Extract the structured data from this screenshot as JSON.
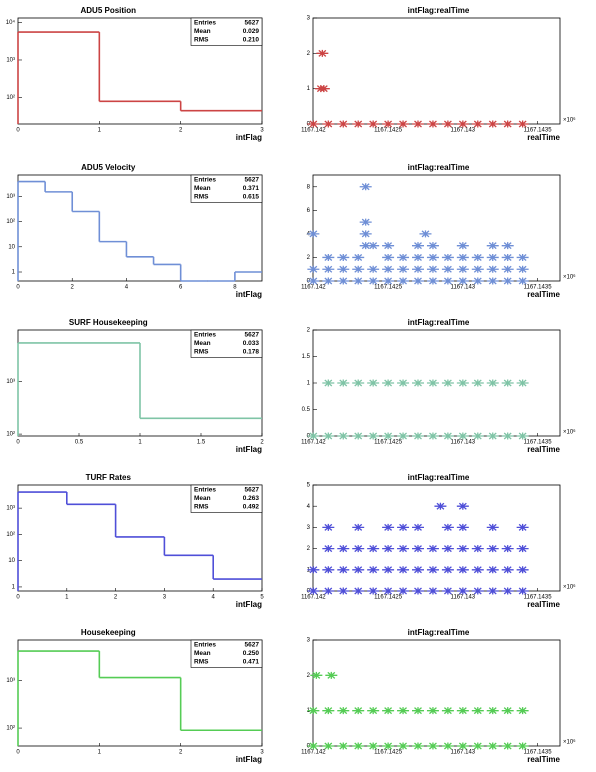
{
  "chart_data": [
    {
      "type": "histogram",
      "title": "ADU5 Position",
      "x_label": "intFlag",
      "color": "#cc4444",
      "log_y": true,
      "bins": [
        0,
        1,
        2,
        3
      ],
      "values": [
        5500,
        80,
        45
      ],
      "xlim": [
        0,
        3
      ],
      "xticks": [
        0,
        1,
        2,
        3
      ],
      "ylim": [
        20,
        13000
      ],
      "yticks": [
        {
          "value": 100,
          "label": "10²"
        },
        {
          "value": 1000,
          "label": "10³"
        },
        {
          "value": 10000,
          "label": "10⁴"
        }
      ],
      "stats": [
        [
          "Entries",
          "5627"
        ],
        [
          "Mean",
          "0.029"
        ],
        [
          "RMS",
          "0.210"
        ]
      ]
    },
    {
      "type": "scatter",
      "title": "intFlag:realTime",
      "x_label": "realTime",
      "x_exponent": "×10⁶",
      "color": "#cc4444",
      "xlim": [
        1167.1419975,
        1167.14365
      ],
      "xticks": [
        1167.142,
        1167.1425,
        1167.143,
        1167.1435
      ],
      "ylim": [
        0,
        3
      ],
      "yticks": [
        0,
        1,
        2,
        3
      ],
      "x": [
        1167.142,
        1167.1421,
        1167.1422,
        1167.1423,
        1167.1424,
        1167.1425,
        1167.1426,
        1167.1427,
        1167.1428,
        1167.1429,
        1167.143,
        1167.1431,
        1167.1432,
        1167.1433,
        1167.1434,
        1167.14205,
        1167.14207,
        1167.14206
      ],
      "y": [
        0,
        0,
        0,
        0,
        0,
        0,
        0,
        0,
        0,
        0,
        0,
        0,
        0,
        0,
        0,
        1,
        1,
        2
      ]
    },
    {
      "type": "histogram",
      "title": "ADU5 Velocity",
      "x_label": "intFlag",
      "color": "#6f8fd6",
      "log_y": true,
      "bins": [
        0,
        1,
        2,
        3,
        4,
        5,
        6,
        7,
        8,
        9
      ],
      "values": [
        3850,
        1500,
        250,
        16,
        4,
        2,
        0,
        0,
        1
      ],
      "xlim": [
        0,
        9
      ],
      "xticks": [
        0,
        2,
        4,
        6,
        8
      ],
      "ylim": [
        0.44,
        7000
      ],
      "yticks": [
        1,
        10,
        {
          "value": 100,
          "label": "10²"
        },
        {
          "value": 1000,
          "label": "10³"
        }
      ],
      "stats": [
        [
          "Entries",
          "5627"
        ],
        [
          "Mean",
          "0.371"
        ],
        [
          "RMS",
          "0.615"
        ]
      ]
    },
    {
      "type": "scatter",
      "title": "intFlag:realTime",
      "x_label": "realTime",
      "x_exponent": "×10⁶",
      "color": "#6f8fd6",
      "xlim": [
        1167.1419975,
        1167.14365
      ],
      "xticks": [
        1167.142,
        1167.1425,
        1167.143,
        1167.1435
      ],
      "ylim": [
        0,
        9
      ],
      "yticks": [
        0,
        2,
        4,
        6,
        8
      ],
      "x": [
        1167.142,
        1167.1421,
        1167.1422,
        1167.1423,
        1167.1424,
        1167.1425,
        1167.1426,
        1167.1427,
        1167.1428,
        1167.1429,
        1167.143,
        1167.1431,
        1167.1432,
        1167.1433,
        1167.1434,
        1167.142,
        1167.1421,
        1167.1422,
        1167.1423,
        1167.1424,
        1167.1425,
        1167.1426,
        1167.1427,
        1167.1428,
        1167.1429,
        1167.143,
        1167.1431,
        1167.1432,
        1167.1433,
        1167.1434,
        1167.1421,
        1167.1422,
        1167.1423,
        1167.1425,
        1167.1426,
        1167.1427,
        1167.1428,
        1167.1429,
        1167.143,
        1167.1431,
        1167.1432,
        1167.1433,
        1167.1434,
        1167.14235,
        1167.1424,
        1167.1425,
        1167.1427,
        1167.1428,
        1167.143,
        1167.1432,
        1167.1433,
        1167.142,
        1167.14235,
        1167.14275,
        1167.14235,
        1167.14235
      ],
      "y": [
        0,
        0,
        0,
        0,
        0,
        0,
        0,
        0,
        0,
        0,
        0,
        0,
        0,
        0,
        0,
        1,
        1,
        1,
        1,
        1,
        1,
        1,
        1,
        1,
        1,
        1,
        1,
        1,
        1,
        1,
        2,
        2,
        2,
        2,
        2,
        2,
        2,
        2,
        2,
        2,
        2,
        2,
        2,
        3,
        3,
        3,
        3,
        3,
        3,
        3,
        3,
        4,
        4,
        4,
        5,
        8
      ]
    },
    {
      "type": "histogram",
      "title": "SURF Housekeeping",
      "x_label": "intFlag",
      "color": "#7fc4a6",
      "log_y": true,
      "bins": [
        0,
        1,
        2
      ],
      "values": [
        5440,
        200
      ],
      "xlim": [
        0,
        2
      ],
      "xticks": [
        0,
        0.5,
        1,
        1.5,
        2
      ],
      "ylim": [
        92,
        9600
      ],
      "yticks": [
        {
          "value": 100,
          "label": "10²"
        },
        {
          "value": 1000,
          "label": "10³"
        }
      ],
      "stats": [
        [
          "Entries",
          "5627"
        ],
        [
          "Mean",
          "0.033"
        ],
        [
          "RMS",
          "0.178"
        ]
      ]
    },
    {
      "type": "scatter",
      "title": "intFlag:realTime",
      "x_label": "realTime",
      "x_exponent": "×10⁶",
      "color": "#7fc4a6",
      "xlim": [
        1167.1419975,
        1167.14365
      ],
      "xticks": [
        1167.142,
        1167.1425,
        1167.143,
        1167.1435
      ],
      "ylim": [
        0,
        2
      ],
      "yticks": [
        0,
        0.5,
        1,
        1.5,
        2
      ],
      "x": [
        1167.142,
        1167.1421,
        1167.1422,
        1167.1423,
        1167.1424,
        1167.1425,
        1167.1426,
        1167.1427,
        1167.1428,
        1167.1429,
        1167.143,
        1167.1431,
        1167.1432,
        1167.1433,
        1167.1434,
        1167.1421,
        1167.1422,
        1167.1423,
        1167.1424,
        1167.1425,
        1167.1426,
        1167.1427,
        1167.1428,
        1167.1429,
        1167.143,
        1167.1431,
        1167.1432,
        1167.1433,
        1167.1434
      ],
      "y": [
        0,
        0,
        0,
        0,
        0,
        0,
        0,
        0,
        0,
        0,
        0,
        0,
        0,
        0,
        0,
        1,
        1,
        1,
        1,
        1,
        1,
        1,
        1,
        1,
        1,
        1,
        1,
        1,
        1
      ]
    },
    {
      "type": "histogram",
      "title": "TURF Rates",
      "x_label": "intFlag",
      "color": "#4f4fd8",
      "log_y": true,
      "bins": [
        0,
        1,
        2,
        3,
        4,
        5
      ],
      "values": [
        4100,
        1400,
        80,
        16,
        2
      ],
      "xlim": [
        0,
        5
      ],
      "xticks": [
        0,
        1,
        2,
        3,
        4,
        5
      ],
      "ylim": [
        0.7,
        7600
      ],
      "yticks": [
        1,
        10,
        {
          "value": 100,
          "label": "10²"
        },
        {
          "value": 1000,
          "label": "10³"
        }
      ],
      "stats": [
        [
          "Entries",
          "5627"
        ],
        [
          "Mean",
          "0.263"
        ],
        [
          "RMS",
          "0.492"
        ]
      ]
    },
    {
      "type": "scatter",
      "title": "intFlag:realTime",
      "x_label": "realTime",
      "x_exponent": "×10⁶",
      "color": "#4f4fd8",
      "xlim": [
        1167.1419975,
        1167.14365
      ],
      "xticks": [
        1167.142,
        1167.1425,
        1167.143,
        1167.1435
      ],
      "ylim": [
        0,
        5
      ],
      "yticks": [
        0,
        1,
        2,
        3,
        4,
        5
      ],
      "x": [
        1167.142,
        1167.1421,
        1167.1422,
        1167.1423,
        1167.1424,
        1167.1425,
        1167.1426,
        1167.1427,
        1167.1428,
        1167.1429,
        1167.143,
        1167.1431,
        1167.1432,
        1167.1433,
        1167.1434,
        1167.142,
        1167.1421,
        1167.1422,
        1167.1423,
        1167.1424,
        1167.1425,
        1167.1426,
        1167.1427,
        1167.1428,
        1167.1429,
        1167.143,
        1167.1431,
        1167.1432,
        1167.1433,
        1167.1434,
        1167.1421,
        1167.1422,
        1167.1423,
        1167.1424,
        1167.1425,
        1167.1426,
        1167.1427,
        1167.1428,
        1167.1429,
        1167.143,
        1167.1431,
        1167.1432,
        1167.1433,
        1167.1434,
        1167.1421,
        1167.1423,
        1167.1425,
        1167.1426,
        1167.1427,
        1167.1429,
        1167.143,
        1167.1432,
        1167.1434,
        1167.14285,
        1167.143
      ],
      "y": [
        0,
        0,
        0,
        0,
        0,
        0,
        0,
        0,
        0,
        0,
        0,
        0,
        0,
        0,
        0,
        1,
        1,
        1,
        1,
        1,
        1,
        1,
        1,
        1,
        1,
        1,
        1,
        1,
        1,
        1,
        2,
        2,
        2,
        2,
        2,
        2,
        2,
        2,
        2,
        2,
        2,
        2,
        2,
        2,
        3,
        3,
        3,
        3,
        3,
        3,
        3,
        3,
        3,
        4,
        4
      ]
    },
    {
      "type": "histogram",
      "title": "Housekeeping",
      "x_label": "intFlag",
      "color": "#55cc55",
      "log_y": true,
      "bins": [
        0,
        1,
        2,
        3
      ],
      "values": [
        4150,
        1150,
        90
      ],
      "xlim": [
        0,
        3
      ],
      "xticks": [
        0,
        1,
        2,
        3
      ],
      "ylim": [
        42,
        7100
      ],
      "yticks": [
        {
          "value": 100,
          "label": "10²"
        },
        {
          "value": 1000,
          "label": "10³"
        }
      ],
      "stats": [
        [
          "Entries",
          "5627"
        ],
        [
          "Mean",
          "0.250"
        ],
        [
          "RMS",
          "0.471"
        ]
      ]
    },
    {
      "type": "scatter",
      "title": "intFlag:realTime",
      "x_label": "realTime",
      "x_exponent": "×10⁶",
      "color": "#55cc55",
      "xlim": [
        1167.1419975,
        1167.14365
      ],
      "xticks": [
        1167.142,
        1167.1425,
        1167.143,
        1167.1435
      ],
      "ylim": [
        0,
        3
      ],
      "yticks": [
        0,
        1,
        2,
        3
      ],
      "x": [
        1167.142,
        1167.1421,
        1167.1422,
        1167.1423,
        1167.1424,
        1167.1425,
        1167.1426,
        1167.1427,
        1167.1428,
        1167.1429,
        1167.143,
        1167.1431,
        1167.1432,
        1167.1433,
        1167.1434,
        1167.142,
        1167.1421,
        1167.1422,
        1167.1423,
        1167.1424,
        1167.1425,
        1167.1426,
        1167.1427,
        1167.1428,
        1167.1429,
        1167.143,
        1167.1431,
        1167.1432,
        1167.1433,
        1167.1434,
        1167.14202,
        1167.14212
      ],
      "y": [
        0,
        0,
        0,
        0,
        0,
        0,
        0,
        0,
        0,
        0,
        0,
        0,
        0,
        0,
        0,
        1,
        1,
        1,
        1,
        1,
        1,
        1,
        1,
        1,
        1,
        1,
        1,
        1,
        1,
        1,
        2,
        2
      ]
    }
  ]
}
